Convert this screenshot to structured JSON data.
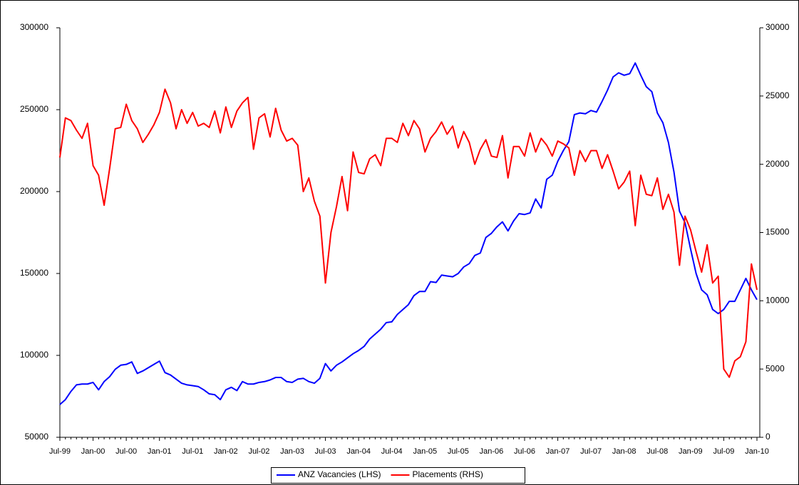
{
  "chart_data": {
    "type": "line",
    "categories": [
      "Jul-99",
      null,
      null,
      null,
      null,
      null,
      "Jan-00",
      null,
      null,
      null,
      null,
      null,
      "Jul-00",
      null,
      null,
      null,
      null,
      null,
      "Jan-01",
      null,
      null,
      null,
      null,
      null,
      "Jul-01",
      null,
      null,
      null,
      null,
      null,
      "Jan-02",
      null,
      null,
      null,
      null,
      null,
      "Jul-02",
      null,
      null,
      null,
      null,
      null,
      "Jan-03",
      null,
      null,
      null,
      null,
      null,
      "Jul-03",
      null,
      null,
      null,
      null,
      null,
      "Jan-04",
      null,
      null,
      null,
      null,
      null,
      "Jul-04",
      null,
      null,
      null,
      null,
      null,
      "Jan-05",
      null,
      null,
      null,
      null,
      null,
      "Jul-05",
      null,
      null,
      null,
      null,
      null,
      "Jan-06",
      null,
      null,
      null,
      null,
      null,
      "Jul-06",
      null,
      null,
      null,
      null,
      null,
      "Jan-07",
      null,
      null,
      null,
      null,
      null,
      "Jul-07",
      null,
      null,
      null,
      null,
      null,
      "Jan-08",
      null,
      null,
      null,
      null,
      null,
      "Jul-08",
      null,
      null,
      null,
      null,
      null,
      "Jan-09",
      null,
      null,
      null,
      null,
      null,
      "Jul-09",
      null,
      null,
      null,
      null,
      null,
      "Jan-10"
    ],
    "series": [
      {
        "name": "ANZ Vacancies (LHS)",
        "color": "#0000ff",
        "axis": "y",
        "values": [
          70000,
          73000,
          78000,
          82000,
          82500,
          82500,
          83500,
          79000,
          84000,
          87000,
          91500,
          94000,
          94500,
          96000,
          89000,
          90500,
          92500,
          94500,
          96500,
          89500,
          88000,
          85500,
          83000,
          82000,
          81500,
          81000,
          79000,
          76500,
          76000,
          73000,
          79000,
          80500,
          78500,
          84000,
          82500,
          82500,
          83500,
          84000,
          85000,
          86500,
          86500,
          84000,
          83500,
          85500,
          86000,
          84000,
          83000,
          86000,
          95000,
          90500,
          94000,
          96000,
          98500,
          101000,
          103000,
          105500,
          110000,
          113000,
          116000,
          120000,
          120500,
          125000,
          128000,
          131000,
          136500,
          139000,
          139000,
          145000,
          144500,
          149000,
          148500,
          148000,
          150000,
          154000,
          156000,
          161000,
          162500,
          172000,
          174500,
          178500,
          181500,
          176000,
          182000,
          186500,
          186000,
          187000,
          195500,
          190000,
          207500,
          210000,
          218500,
          225000,
          230500,
          247000,
          248000,
          247500,
          249500,
          248500,
          255000,
          262000,
          270000,
          272500,
          271000,
          272000,
          278500,
          271000,
          264000,
          261000,
          248000,
          242000,
          230000,
          212000,
          188000,
          181000,
          165000,
          150000,
          140000,
          137000,
          128000,
          125500,
          128000,
          133000,
          133000,
          140000,
          147000,
          140000,
          134000
        ]
      },
      {
        "name": "Placements (RHS)",
        "color": "#ff0000",
        "axis": "y2",
        "values": [
          20500,
          23400,
          23200,
          22500,
          21900,
          23000,
          19900,
          19200,
          17000,
          19700,
          22600,
          22700,
          24400,
          23200,
          22600,
          21600,
          22200,
          22900,
          23800,
          25500,
          24500,
          22600,
          24000,
          23000,
          23800,
          22800,
          23000,
          22700,
          23900,
          22300,
          24200,
          22700,
          23900,
          24500,
          24900,
          21100,
          23400,
          23700,
          22000,
          24100,
          22500,
          21700,
          21900,
          21400,
          18000,
          19000,
          17300,
          16200,
          11300,
          15000,
          16900,
          19100,
          16600,
          20900,
          19400,
          19300,
          20400,
          20700,
          19900,
          21900,
          21900,
          21600,
          23000,
          22100,
          23200,
          22600,
          20900,
          21900,
          22400,
          23100,
          22200,
          22800,
          21200,
          22400,
          21600,
          20000,
          21100,
          21800,
          20600,
          20500,
          22100,
          19000,
          21300,
          21300,
          20600,
          22300,
          20900,
          21900,
          21400,
          20600,
          21700,
          21500,
          21200,
          19200,
          21000,
          20200,
          21000,
          21000,
          19700,
          20700,
          19500,
          18200,
          18700,
          19500,
          15500,
          19200,
          17800,
          17700,
          19000,
          16700,
          17800,
          16500,
          12600,
          16200,
          15200,
          13600,
          12100,
          14100,
          11300,
          11800,
          5000,
          4400,
          5600,
          5900,
          7000,
          12700,
          10800
        ]
      }
    ],
    "ylim": [
      50000,
      300000
    ],
    "yticks": [
      50000,
      100000,
      150000,
      200000,
      250000,
      300000
    ],
    "y2lim": [
      0,
      30000
    ],
    "y2ticks": [
      0,
      5000,
      10000,
      15000,
      20000,
      25000,
      30000
    ],
    "grid": false,
    "legend": "bottom"
  }
}
